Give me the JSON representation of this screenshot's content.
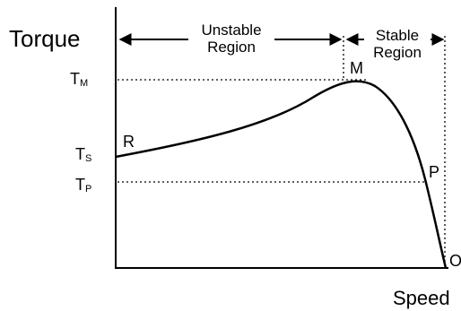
{
  "diagram": {
    "y_axis_title": "Torque",
    "x_axis_title": "Speed",
    "regions": {
      "unstable": {
        "line1": "Unstable",
        "line2": "Region"
      },
      "stable": {
        "line1": "Stable",
        "line2": "Region"
      }
    },
    "torque_levels": {
      "maximum": {
        "symbol": "T",
        "subscript": "M"
      },
      "starting": {
        "symbol": "T",
        "subscript": "S"
      },
      "operating": {
        "symbol": "T",
        "subscript": "P"
      }
    },
    "points": {
      "start": "R",
      "max": "M",
      "operating": "P",
      "end": "O"
    }
  }
}
